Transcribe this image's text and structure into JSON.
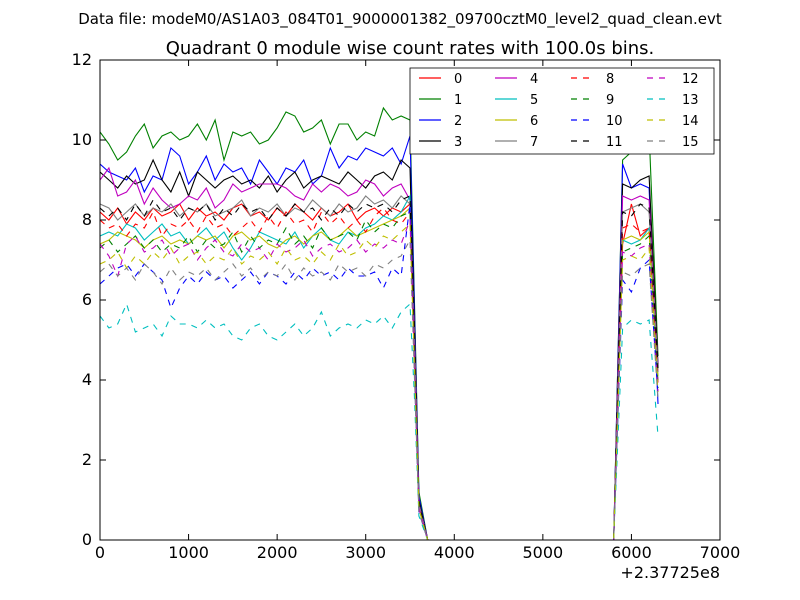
{
  "figure": {
    "suptitle": "Data file: modeM0/AS1A03_084T01_9000001382_09700cztM0_level2_quad_clean.evt"
  },
  "chart_data": {
    "type": "line",
    "title": "Quadrant 0 module wise count rates with 100.0s bins.",
    "xlabel": "",
    "ylabel": "",
    "x_offset_label": "+2.37725e8",
    "xlim": [
      0,
      7000
    ],
    "ylim": [
      0,
      12
    ],
    "x_ticks": [
      "0",
      "1000",
      "2000",
      "3000",
      "4000",
      "5000",
      "6000",
      "7000"
    ],
    "y_ticks": [
      "0",
      "2",
      "4",
      "6",
      "8",
      "10",
      "12"
    ],
    "grid": false,
    "legend": {
      "placement": "top-right",
      "columns": 4
    },
    "x": [
      0,
      100,
      200,
      300,
      400,
      500,
      600,
      700,
      800,
      900,
      1000,
      1100,
      1200,
      1300,
      1400,
      1500,
      1600,
      1700,
      1800,
      1900,
      2000,
      2100,
      2200,
      2300,
      2400,
      2500,
      2600,
      2700,
      2800,
      2900,
      3000,
      3100,
      3200,
      3300,
      3400,
      3500,
      3550,
      3600,
      3700,
      3800,
      5500,
      5700,
      5800,
      5900,
      6000,
      6100,
      6200,
      6300
    ],
    "series": [
      {
        "name": "0",
        "color": "#ff0000",
        "dash": "solid",
        "values": [
          8.2,
          8.0,
          8.3,
          7.9,
          8.2,
          8.0,
          8.3,
          8.1,
          8.2,
          8.4,
          8.0,
          8.3,
          8.1,
          8.2,
          8.0,
          8.3,
          8.4,
          8.1,
          8.2,
          8.0,
          8.3,
          8.1,
          8.4,
          8.2,
          8.0,
          8.3,
          8.1,
          8.2,
          8.4,
          8.0,
          8.2,
          8.3,
          8.1,
          8.3,
          8.2,
          8.4,
          4.8,
          0.9,
          0,
          0,
          0,
          0,
          0,
          7.4,
          8.4,
          7.6,
          7.8,
          4.2
        ]
      },
      {
        "name": "1",
        "color": "#008000",
        "dash": "solid",
        "values": [
          10.2,
          9.9,
          9.5,
          9.7,
          10.1,
          10.4,
          9.8,
          10.1,
          10.2,
          10.0,
          10.1,
          10.4,
          10.0,
          10.5,
          9.5,
          10.2,
          10.1,
          10.2,
          9.9,
          10.0,
          10.3,
          10.7,
          10.6,
          10.2,
          10.3,
          10.5,
          9.9,
          10.4,
          10.4,
          10.0,
          10.2,
          10.1,
          10.8,
          10.5,
          10.6,
          10.5,
          6.0,
          1.2,
          0,
          0,
          0,
          0,
          0,
          9.5,
          9.7,
          10.4,
          10.2,
          4.6
        ]
      },
      {
        "name": "2",
        "color": "#0000ff",
        "dash": "solid",
        "values": [
          9.4,
          9.2,
          9.1,
          9.0,
          9.3,
          8.7,
          9.1,
          9.0,
          9.8,
          9.6,
          8.9,
          9.2,
          9.6,
          9.0,
          9.4,
          9.2,
          9.3,
          8.9,
          9.5,
          9.2,
          8.9,
          9.3,
          9.2,
          9.5,
          8.9,
          9.1,
          9.8,
          9.3,
          9.6,
          9.5,
          9.8,
          9.7,
          9.6,
          9.8,
          9.4,
          10.1,
          5.8,
          1.1,
          0,
          0,
          0,
          0,
          0,
          9.4,
          8.8,
          8.9,
          8.8,
          3.4
        ]
      },
      {
        "name": "3",
        "color": "#000000",
        "dash": "solid",
        "values": [
          9.2,
          9.0,
          8.8,
          9.1,
          8.9,
          9.0,
          9.5,
          9.0,
          8.7,
          9.2,
          8.6,
          9.2,
          9.0,
          8.8,
          9.0,
          9.1,
          8.9,
          9.0,
          8.8,
          9.1,
          8.7,
          9.0,
          9.2,
          8.8,
          9.0,
          9.1,
          9.0,
          8.9,
          9.2,
          9.0,
          8.8,
          9.1,
          9.2,
          9.0,
          9.5,
          9.3,
          5.4,
          1.0,
          0,
          0,
          0,
          0,
          0,
          8.9,
          8.8,
          9.0,
          9.1,
          4.4
        ]
      },
      {
        "name": "4",
        "color": "#bf00bf",
        "dash": "solid",
        "values": [
          9.0,
          9.3,
          8.6,
          8.7,
          9.0,
          8.4,
          8.8,
          8.5,
          8.3,
          8.4,
          8.6,
          8.5,
          8.8,
          8.3,
          8.5,
          8.9,
          8.7,
          8.8,
          8.9,
          8.9,
          8.9,
          8.8,
          8.6,
          8.5,
          8.9,
          8.7,
          8.9,
          8.8,
          8.6,
          8.7,
          9.0,
          8.9,
          8.6,
          8.8,
          8.9,
          8.5,
          5.1,
          0.9,
          0,
          0,
          0,
          0,
          0,
          8.6,
          8.5,
          8.6,
          8.5,
          4.3
        ]
      },
      {
        "name": "5",
        "color": "#00bfbf",
        "dash": "solid",
        "values": [
          7.6,
          7.7,
          7.6,
          7.9,
          7.8,
          7.5,
          7.7,
          7.9,
          7.6,
          7.7,
          7.4,
          7.6,
          7.8,
          7.5,
          7.7,
          7.3,
          7.0,
          7.3,
          7.7,
          7.6,
          7.5,
          7.4,
          7.7,
          7.3,
          7.6,
          7.8,
          7.5,
          7.4,
          7.7,
          7.6,
          7.8,
          7.9,
          8.1,
          8.0,
          8.2,
          8.6,
          4.6,
          0.8,
          0,
          0,
          0,
          0,
          0,
          7.5,
          7.4,
          7.5,
          7.8,
          4.0
        ]
      },
      {
        "name": "6",
        "color": "#bfbf00",
        "dash": "solid",
        "values": [
          7.4,
          7.5,
          7.7,
          7.6,
          7.5,
          7.3,
          7.5,
          7.6,
          7.4,
          7.5,
          7.4,
          7.6,
          7.5,
          7.6,
          7.3,
          7.6,
          7.7,
          7.5,
          7.6,
          7.4,
          7.3,
          7.5,
          7.6,
          7.4,
          7.6,
          7.7,
          7.5,
          7.6,
          7.8,
          7.6,
          7.7,
          7.8,
          7.9,
          8.0,
          8.1,
          8.3,
          4.5,
          0.8,
          0,
          0,
          0,
          0,
          0,
          7.5,
          7.6,
          7.5,
          7.7,
          4.1
        ]
      },
      {
        "name": "7",
        "color": "#808080",
        "dash": "solid",
        "values": [
          8.4,
          8.3,
          8.0,
          8.2,
          8.4,
          8.1,
          8.3,
          8.2,
          8.4,
          8.1,
          8.3,
          8.2,
          8.4,
          8.1,
          8.2,
          8.3,
          8.5,
          8.1,
          8.3,
          8.2,
          8.4,
          8.1,
          8.3,
          8.2,
          8.5,
          8.3,
          8.1,
          8.4,
          8.2,
          8.3,
          8.6,
          8.4,
          8.5,
          8.3,
          8.6,
          8.4,
          5.0,
          0.9,
          0,
          0,
          0,
          0,
          0,
          8.2,
          8.3,
          8.4,
          8.2,
          4.2
        ]
      },
      {
        "name": "8",
        "color": "#ff0000",
        "dash": "dash",
        "values": [
          8.0,
          7.8,
          7.9,
          7.6,
          7.9,
          7.8,
          8.2,
          7.6,
          7.9,
          7.8,
          8.0,
          7.7,
          8.1,
          7.8,
          7.9,
          7.6,
          7.8,
          8.0,
          7.7,
          8.1,
          7.8,
          8.2,
          7.9,
          8.0,
          7.7,
          8.2,
          7.9,
          8.1,
          7.8,
          8.0,
          7.7,
          8.1,
          8.3,
          8.0,
          7.9,
          8.2,
          4.6,
          0.8,
          0,
          0,
          0,
          0,
          0,
          7.8,
          7.9,
          7.7,
          7.8,
          3.9
        ]
      },
      {
        "name": "9",
        "color": "#008000",
        "dash": "dash",
        "values": [
          7.3,
          7.5,
          7.2,
          7.4,
          7.6,
          7.3,
          7.5,
          7.2,
          7.4,
          7.3,
          7.6,
          7.2,
          7.5,
          7.3,
          7.4,
          7.7,
          7.2,
          7.6,
          7.3,
          7.5,
          7.4,
          7.8,
          7.4,
          7.6,
          7.3,
          7.8,
          7.5,
          7.6,
          7.7,
          7.5,
          8.0,
          7.7,
          7.9,
          7.8,
          8.1,
          8.2,
          4.4,
          0.8,
          0,
          0,
          0,
          0,
          0,
          7.2,
          7.3,
          7.4,
          7.6,
          3.8
        ]
      },
      {
        "name": "10",
        "color": "#0000ff",
        "dash": "dash",
        "values": [
          6.4,
          6.6,
          6.8,
          6.9,
          6.6,
          6.9,
          6.7,
          6.5,
          5.8,
          6.3,
          6.6,
          6.4,
          6.7,
          6.5,
          6.6,
          6.3,
          6.5,
          6.7,
          6.4,
          6.7,
          6.6,
          6.4,
          6.7,
          6.5,
          6.8,
          6.6,
          6.7,
          6.5,
          6.8,
          6.6,
          6.6,
          6.7,
          6.3,
          6.8,
          6.6,
          8.4,
          4.3,
          0.7,
          0,
          0,
          0,
          0,
          0,
          6.5,
          6.2,
          6.8,
          7.0,
          3.6
        ]
      },
      {
        "name": "11",
        "color": "#000000",
        "dash": "dash",
        "values": [
          8.3,
          8.1,
          8.3,
          8.0,
          8.4,
          8.1,
          8.5,
          8.2,
          8.3,
          8.0,
          8.3,
          8.2,
          8.4,
          8.0,
          8.3,
          8.1,
          8.4,
          8.2,
          8.3,
          8.0,
          8.3,
          8.1,
          8.4,
          8.2,
          8.3,
          8.0,
          8.3,
          8.1,
          8.4,
          8.2,
          8.4,
          8.3,
          8.4,
          8.2,
          8.5,
          8.6,
          5.0,
          0.9,
          0,
          0,
          0,
          0,
          0,
          8.2,
          8.1,
          8.4,
          8.3,
          4.3
        ]
      },
      {
        "name": "12",
        "color": "#bf00bf",
        "dash": "dash",
        "values": [
          7.4,
          7.1,
          6.6,
          7.4,
          7.6,
          7.2,
          7.3,
          7.5,
          7.1,
          7.3,
          7.4,
          7.0,
          7.3,
          7.5,
          7.2,
          7.1,
          7.4,
          7.2,
          7.3,
          7.0,
          7.4,
          7.2,
          7.3,
          7.5,
          7.1,
          7.3,
          7.4,
          7.2,
          7.3,
          7.5,
          7.2,
          7.4,
          7.3,
          7.5,
          7.4,
          8.0,
          4.4,
          0.8,
          0,
          0,
          0,
          0,
          0,
          7.2,
          7.1,
          7.3,
          7.4,
          3.7
        ]
      },
      {
        "name": "13",
        "color": "#00bfbf",
        "dash": "dash",
        "values": [
          5.6,
          5.3,
          5.4,
          5.9,
          5.2,
          5.3,
          5.4,
          5.1,
          5.6,
          5.4,
          5.4,
          5.3,
          5.5,
          5.3,
          5.4,
          5.1,
          5.0,
          5.3,
          5.4,
          5.1,
          5.0,
          5.2,
          5.4,
          5.1,
          5.3,
          5.7,
          5.1,
          5.3,
          5.4,
          5.3,
          5.5,
          5.4,
          5.6,
          5.3,
          5.7,
          5.9,
          3.6,
          0.6,
          0,
          0,
          0,
          0,
          0,
          5.3,
          5.5,
          5.4,
          5.5,
          2.6
        ]
      },
      {
        "name": "14",
        "color": "#bfbf00",
        "dash": "dash",
        "values": [
          6.9,
          7.0,
          7.2,
          6.8,
          7.1,
          6.9,
          7.2,
          7.0,
          7.3,
          6.9,
          7.1,
          7.2,
          6.9,
          7.1,
          7.0,
          7.3,
          6.9,
          7.1,
          7.0,
          7.2,
          6.9,
          7.3,
          7.0,
          7.1,
          6.9,
          7.2,
          7.0,
          7.4,
          7.1,
          7.2,
          7.5,
          7.3,
          7.6,
          7.5,
          7.7,
          7.9,
          4.4,
          0.8,
          0,
          0,
          0,
          0,
          0,
          7.0,
          7.1,
          7.0,
          7.3,
          3.7
        ]
      },
      {
        "name": "15",
        "color": "#808080",
        "dash": "dash",
        "values": [
          6.7,
          6.9,
          6.6,
          6.8,
          6.5,
          6.9,
          6.7,
          6.4,
          6.8,
          6.5,
          6.7,
          6.6,
          6.8,
          6.5,
          6.7,
          6.9,
          6.6,
          6.8,
          6.5,
          6.7,
          6.6,
          6.9,
          6.5,
          6.8,
          6.6,
          6.7,
          6.5,
          6.9,
          6.7,
          6.8,
          6.6,
          6.9,
          6.8,
          7.0,
          7.1,
          7.5,
          4.1,
          0.7,
          0,
          0,
          0,
          0,
          0,
          6.7,
          6.6,
          6.8,
          6.9,
          3.5
        ]
      }
    ]
  }
}
